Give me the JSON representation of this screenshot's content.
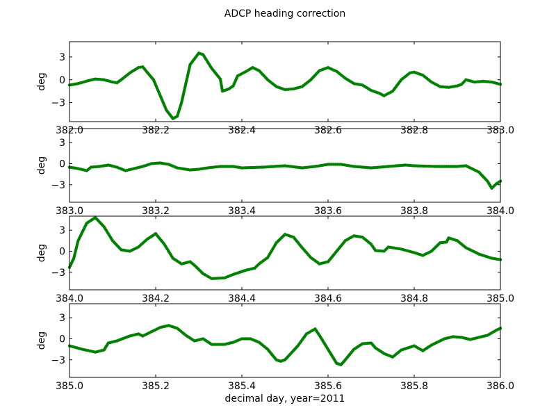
{
  "figure": {
    "title": "ADCP heading correction",
    "xlabel": "decimal day, year=2011"
  },
  "chart_data": [
    {
      "type": "scatter",
      "ylabel": "deg",
      "xlim": [
        382.0,
        383.0
      ],
      "ylim": [
        -5.5,
        5
      ],
      "xticks": [
        382.0,
        382.2,
        382.4,
        382.6,
        382.8,
        383.0
      ],
      "xtick_labels": [
        "382.0",
        "382.2",
        "382.4",
        "382.6",
        "382.8",
        "383.0"
      ],
      "yticks": [
        3,
        0,
        -3
      ],
      "ytick_labels": [
        "3",
        "0",
        "−3"
      ],
      "marker_color": "#008000",
      "curve": [
        [
          382.0,
          -0.7
        ],
        [
          382.02,
          -0.5
        ],
        [
          382.045,
          -0.1
        ],
        [
          382.06,
          0.1
        ],
        [
          382.08,
          0.0
        ],
        [
          382.1,
          -0.3
        ],
        [
          382.11,
          -0.4
        ],
        [
          382.12,
          0.0
        ],
        [
          382.14,
          0.9
        ],
        [
          382.16,
          1.6
        ],
        [
          382.17,
          1.7
        ],
        [
          382.18,
          1.0
        ],
        [
          382.195,
          0.0
        ],
        [
          382.21,
          -2.0
        ],
        [
          382.225,
          -4.0
        ],
        [
          382.24,
          -5.1
        ],
        [
          382.25,
          -4.8
        ],
        [
          382.26,
          -3.0
        ],
        [
          382.27,
          -0.5
        ],
        [
          382.28,
          2.0
        ],
        [
          382.3,
          3.5
        ],
        [
          382.31,
          3.3
        ],
        [
          382.33,
          1.5
        ],
        [
          382.35,
          0.1
        ],
        [
          382.355,
          -1.5
        ],
        [
          382.37,
          -1.2
        ],
        [
          382.38,
          -0.8
        ],
        [
          382.39,
          0.5
        ],
        [
          382.41,
          1.1
        ],
        [
          382.425,
          1.6
        ],
        [
          382.44,
          1.2
        ],
        [
          382.46,
          0.0
        ],
        [
          382.48,
          -0.9
        ],
        [
          382.5,
          -1.3
        ],
        [
          382.52,
          -1.2
        ],
        [
          382.54,
          -0.9
        ],
        [
          382.56,
          0.0
        ],
        [
          382.58,
          1.2
        ],
        [
          382.6,
          1.6
        ],
        [
          382.62,
          1.1
        ],
        [
          382.64,
          0.2
        ],
        [
          382.66,
          -0.5
        ],
        [
          382.68,
          -0.7
        ],
        [
          382.7,
          -1.4
        ],
        [
          382.72,
          -1.8
        ],
        [
          382.73,
          -2.1
        ],
        [
          382.75,
          -1.5
        ],
        [
          382.77,
          0.0
        ],
        [
          382.79,
          0.9
        ],
        [
          382.8,
          1.0
        ],
        [
          382.82,
          0.6
        ],
        [
          382.84,
          -0.3
        ],
        [
          382.86,
          -0.9
        ],
        [
          382.88,
          -1.0
        ],
        [
          382.9,
          -0.8
        ],
        [
          382.91,
          -0.6
        ],
        [
          382.92,
          0.0
        ],
        [
          382.94,
          -0.3
        ],
        [
          382.96,
          -0.2
        ],
        [
          382.98,
          -0.3
        ],
        [
          383.0,
          -0.6
        ]
      ]
    },
    {
      "type": "scatter",
      "ylabel": "deg",
      "xlim": [
        383.0,
        384.0
      ],
      "ylim": [
        -5.5,
        5
      ],
      "xticks": [
        383.0,
        383.2,
        383.4,
        383.6,
        383.8,
        384.0
      ],
      "xtick_labels": [
        "383.0",
        "383.2",
        "383.4",
        "383.6",
        "383.8",
        "384.0"
      ],
      "yticks": [
        3,
        0,
        -3
      ],
      "ytick_labels": [
        "3",
        "0",
        "−3"
      ],
      "marker_color": "#008000",
      "curve": [
        [
          383.0,
          -0.5
        ],
        [
          383.02,
          -0.7
        ],
        [
          383.04,
          -1.0
        ],
        [
          383.05,
          -0.5
        ],
        [
          383.07,
          -0.4
        ],
        [
          383.09,
          -0.2
        ],
        [
          383.11,
          -0.5
        ],
        [
          383.13,
          -1.0
        ],
        [
          383.15,
          -0.7
        ],
        [
          383.17,
          -0.4
        ],
        [
          383.19,
          0.0
        ],
        [
          383.21,
          0.1
        ],
        [
          383.23,
          -0.1
        ],
        [
          383.25,
          -0.6
        ],
        [
          383.28,
          -0.9
        ],
        [
          383.3,
          -0.8
        ],
        [
          383.32,
          -0.6
        ],
        [
          383.35,
          -0.4
        ],
        [
          383.38,
          -0.4
        ],
        [
          383.4,
          -0.6
        ],
        [
          383.45,
          -0.5
        ],
        [
          383.5,
          -0.3
        ],
        [
          383.54,
          -0.6
        ],
        [
          383.57,
          -0.4
        ],
        [
          383.6,
          -0.1
        ],
        [
          383.63,
          -0.1
        ],
        [
          383.66,
          -0.4
        ],
        [
          383.7,
          -0.6
        ],
        [
          383.74,
          -0.4
        ],
        [
          383.78,
          -0.2
        ],
        [
          383.8,
          -0.3
        ],
        [
          383.85,
          -0.4
        ],
        [
          383.9,
          -0.4
        ],
        [
          383.92,
          -0.3
        ],
        [
          383.93,
          -0.6
        ],
        [
          383.95,
          -1.2
        ],
        [
          383.97,
          -2.5
        ],
        [
          383.98,
          -3.5
        ],
        [
          383.99,
          -2.9
        ],
        [
          384.0,
          -2.5
        ]
      ]
    },
    {
      "type": "scatter",
      "ylabel": "deg",
      "xlim": [
        384.0,
        385.0
      ],
      "ylim": [
        -5.5,
        5
      ],
      "xticks": [
        384.0,
        384.2,
        384.4,
        384.6,
        384.8,
        385.0
      ],
      "xtick_labels": [
        "384.0",
        "384.2",
        "384.4",
        "384.6",
        "384.8",
        "385.0"
      ],
      "yticks": [
        3,
        0,
        -3
      ],
      "ytick_labels": [
        "3",
        "0",
        "−3"
      ],
      "marker_color": "#008000",
      "curve": [
        [
          384.0,
          -2.3
        ],
        [
          384.01,
          -1.0
        ],
        [
          384.02,
          1.5
        ],
        [
          384.04,
          4.0
        ],
        [
          384.06,
          4.8
        ],
        [
          384.08,
          3.5
        ],
        [
          384.1,
          1.5
        ],
        [
          384.12,
          0.2
        ],
        [
          384.14,
          0.0
        ],
        [
          384.16,
          0.6
        ],
        [
          384.18,
          1.7
        ],
        [
          384.2,
          2.5
        ],
        [
          384.22,
          1.0
        ],
        [
          384.24,
          -1.0
        ],
        [
          384.26,
          -1.8
        ],
        [
          384.28,
          -1.5
        ],
        [
          384.29,
          -2.0
        ],
        [
          384.31,
          -3.2
        ],
        [
          384.33,
          -3.9
        ],
        [
          384.36,
          -3.8
        ],
        [
          384.38,
          -3.3
        ],
        [
          384.41,
          -2.7
        ],
        [
          384.43,
          -2.4
        ],
        [
          384.44,
          -1.8
        ],
        [
          384.46,
          -0.9
        ],
        [
          384.48,
          1.2
        ],
        [
          384.5,
          2.4
        ],
        [
          384.52,
          2.0
        ],
        [
          384.54,
          0.5
        ],
        [
          384.56,
          -0.9
        ],
        [
          384.58,
          -1.8
        ],
        [
          384.6,
          -1.5
        ],
        [
          384.62,
          0.0
        ],
        [
          384.64,
          1.5
        ],
        [
          384.66,
          2.2
        ],
        [
          384.68,
          2.0
        ],
        [
          384.7,
          1.0
        ],
        [
          384.71,
          0.1
        ],
        [
          384.73,
          0.0
        ],
        [
          384.74,
          0.6
        ],
        [
          384.77,
          0.3
        ],
        [
          384.8,
          -0.2
        ],
        [
          384.82,
          -0.6
        ],
        [
          384.84,
          0.0
        ],
        [
          384.86,
          1.2
        ],
        [
          384.875,
          1.3
        ],
        [
          384.88,
          1.9
        ],
        [
          384.9,
          1.5
        ],
        [
          384.92,
          0.5
        ],
        [
          384.95,
          -0.4
        ],
        [
          384.98,
          -1.0
        ],
        [
          385.0,
          -1.2
        ]
      ]
    },
    {
      "type": "scatter",
      "ylabel": "deg",
      "xlim": [
        385.0,
        386.0
      ],
      "ylim": [
        -5.5,
        5
      ],
      "xticks": [
        385.0,
        385.2,
        385.4,
        385.6,
        385.8,
        386.0
      ],
      "xtick_labels": [
        "385.0",
        "385.2",
        "385.4",
        "385.6",
        "385.8",
        "386.0"
      ],
      "yticks": [
        3,
        0,
        -3
      ],
      "ytick_labels": [
        "3",
        "0",
        "−3"
      ],
      "marker_color": "#008000",
      "curve": [
        [
          385.0,
          -1.0
        ],
        [
          385.03,
          -1.5
        ],
        [
          385.06,
          -1.9
        ],
        [
          385.08,
          -1.6
        ],
        [
          385.09,
          -0.6
        ],
        [
          385.11,
          -0.3
        ],
        [
          385.14,
          0.4
        ],
        [
          385.16,
          0.7
        ],
        [
          385.17,
          0.4
        ],
        [
          385.19,
          1.0
        ],
        [
          385.21,
          1.6
        ],
        [
          385.23,
          1.9
        ],
        [
          385.25,
          1.5
        ],
        [
          385.27,
          0.5
        ],
        [
          385.29,
          -0.3
        ],
        [
          385.31,
          0.0
        ],
        [
          385.33,
          -0.8
        ],
        [
          385.36,
          -0.8
        ],
        [
          385.38,
          -0.5
        ],
        [
          385.4,
          0.0
        ],
        [
          385.42,
          0.0
        ],
        [
          385.44,
          -0.5
        ],
        [
          385.46,
          -1.5
        ],
        [
          385.48,
          -3.0
        ],
        [
          385.49,
          -3.2
        ],
        [
          385.5,
          -3.0
        ],
        [
          385.53,
          -1.0
        ],
        [
          385.55,
          0.7
        ],
        [
          385.57,
          1.4
        ],
        [
          385.58,
          0.5
        ],
        [
          385.6,
          -1.5
        ],
        [
          385.61,
          -2.5
        ],
        [
          385.62,
          -3.5
        ],
        [
          385.63,
          -3.7
        ],
        [
          385.64,
          -3.0
        ],
        [
          385.66,
          -1.5
        ],
        [
          385.68,
          -0.7
        ],
        [
          385.7,
          -0.6
        ],
        [
          385.71,
          -1.3
        ],
        [
          385.73,
          -2.1
        ],
        [
          385.75,
          -2.6
        ],
        [
          385.77,
          -1.6
        ],
        [
          385.79,
          -1.2
        ],
        [
          385.8,
          -1.0
        ],
        [
          385.82,
          -1.7
        ],
        [
          385.84,
          -0.9
        ],
        [
          385.87,
          0.0
        ],
        [
          385.89,
          0.3
        ],
        [
          385.91,
          0.2
        ],
        [
          385.93,
          -0.1
        ],
        [
          385.95,
          0.2
        ],
        [
          385.97,
          0.5
        ],
        [
          385.99,
          1.2
        ],
        [
          386.0,
          1.5
        ]
      ]
    }
  ]
}
